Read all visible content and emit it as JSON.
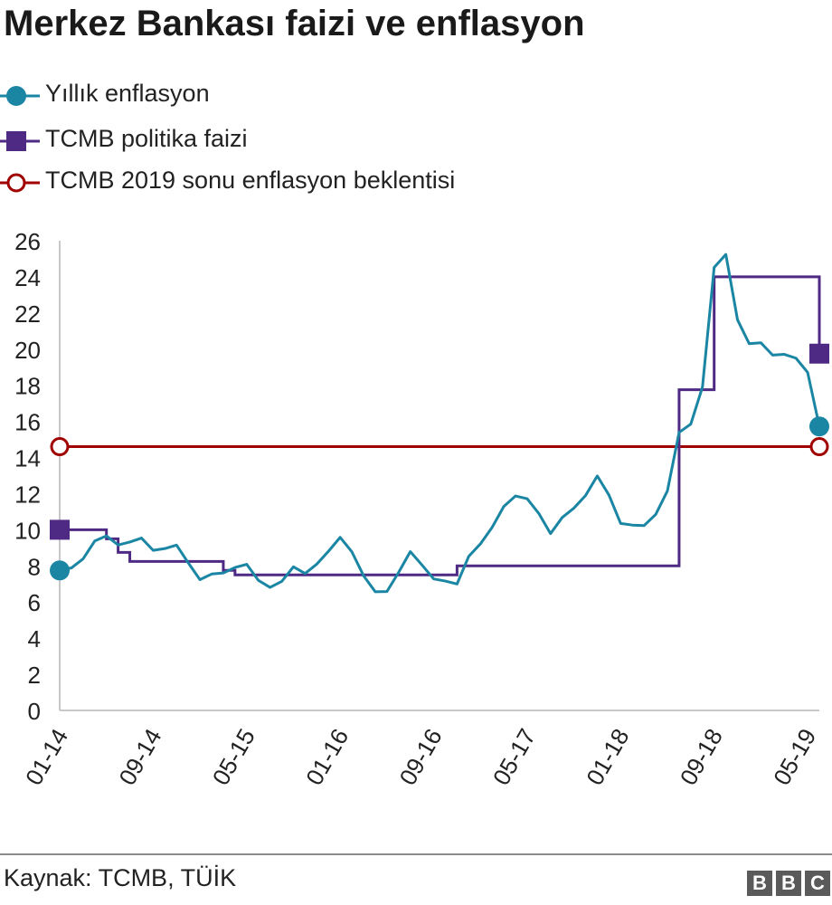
{
  "title": "Merkez Bankası faizi ve enflasyon",
  "source": "Kaynak: TCMB, TÜİK",
  "logo": [
    "B",
    "B",
    "C"
  ],
  "colors": {
    "inflation": "#1a86a4",
    "policy": "#4e2a84",
    "expectation": "#a00000",
    "axis": "#c8c8c8"
  },
  "chart_data": {
    "type": "line",
    "title": "Merkez Bankası faizi ve enflasyon",
    "xlabel": "",
    "ylabel": "",
    "ylim": [
      0,
      26
    ],
    "yticks": [
      "0",
      "2",
      "4",
      "6",
      "8",
      "10",
      "12",
      "14",
      "16",
      "18",
      "20",
      "22",
      "24",
      "26"
    ],
    "xticks": [
      "01-14",
      "09-14",
      "05-15",
      "01-16",
      "09-16",
      "05-17",
      "01-18",
      "09-18",
      "05-19"
    ],
    "x": [
      "01-14",
      "02-14",
      "03-14",
      "04-14",
      "05-14",
      "06-14",
      "07-14",
      "08-14",
      "09-14",
      "10-14",
      "11-14",
      "12-14",
      "01-15",
      "02-15",
      "03-15",
      "04-15",
      "05-15",
      "06-15",
      "07-15",
      "08-15",
      "09-15",
      "10-15",
      "11-15",
      "12-15",
      "01-16",
      "02-16",
      "03-16",
      "04-16",
      "05-16",
      "06-16",
      "07-16",
      "08-16",
      "09-16",
      "10-16",
      "11-16",
      "12-16",
      "01-17",
      "02-17",
      "03-17",
      "04-17",
      "05-17",
      "06-17",
      "07-17",
      "08-17",
      "09-17",
      "10-17",
      "11-17",
      "12-17",
      "01-18",
      "02-18",
      "03-18",
      "04-18",
      "05-18",
      "06-18",
      "07-18",
      "08-18",
      "09-18",
      "10-18",
      "11-18",
      "12-18",
      "01-19",
      "02-19",
      "03-19",
      "04-19",
      "05-19",
      "06-19"
    ],
    "grid": false,
    "legend_position": "top",
    "series": [
      {
        "name": "Yıllık enflasyon",
        "marker": "circle",
        "values": [
          7.75,
          7.89,
          8.39,
          9.38,
          9.66,
          9.16,
          9.32,
          9.54,
          8.86,
          8.96,
          9.15,
          8.17,
          7.24,
          7.55,
          7.61,
          7.91,
          8.09,
          7.2,
          6.81,
          7.14,
          7.95,
          7.58,
          8.1,
          8.81,
          9.58,
          8.78,
          7.46,
          6.57,
          6.58,
          7.64,
          8.79,
          8.05,
          7.28,
          7.16,
          7.0,
          8.53,
          9.22,
          10.13,
          11.29,
          11.87,
          11.72,
          10.9,
          9.79,
          10.68,
          11.2,
          11.9,
          12.98,
          11.92,
          10.35,
          10.26,
          10.23,
          10.85,
          12.15,
          15.39,
          15.85,
          17.9,
          24.52,
          25.24,
          21.62,
          20.3,
          20.35,
          19.67,
          19.71,
          19.5,
          18.71,
          15.72
        ]
      },
      {
        "name": "TCMB politika faizi",
        "marker": "square",
        "values": [
          10,
          10,
          10,
          10,
          9.5,
          8.75,
          8.25,
          8.25,
          8.25,
          8.25,
          8.25,
          8.25,
          8.25,
          8.25,
          7.75,
          7.5,
          7.5,
          7.5,
          7.5,
          7.5,
          7.5,
          7.5,
          7.5,
          7.5,
          7.5,
          7.5,
          7.5,
          7.5,
          7.5,
          7.5,
          7.5,
          7.5,
          7.5,
          7.5,
          8,
          8,
          8,
          8,
          8,
          8,
          8,
          8,
          8,
          8,
          8,
          8,
          8,
          8,
          8,
          8,
          8,
          8,
          8,
          17.75,
          17.75,
          17.75,
          24,
          24,
          24,
          24,
          24,
          24,
          24,
          24,
          24,
          19.75
        ]
      },
      {
        "name": "TCMB 2019 sonu enflasyon beklentisi",
        "marker": "open-circle",
        "values": [
          14.6,
          14.6,
          14.6,
          14.6,
          14.6,
          14.6,
          14.6,
          14.6,
          14.6,
          14.6,
          14.6,
          14.6,
          14.6,
          14.6,
          14.6,
          14.6,
          14.6,
          14.6,
          14.6,
          14.6,
          14.6,
          14.6,
          14.6,
          14.6,
          14.6,
          14.6,
          14.6,
          14.6,
          14.6,
          14.6,
          14.6,
          14.6,
          14.6,
          14.6,
          14.6,
          14.6,
          14.6,
          14.6,
          14.6,
          14.6,
          14.6,
          14.6,
          14.6,
          14.6,
          14.6,
          14.6,
          14.6,
          14.6,
          14.6,
          14.6,
          14.6,
          14.6,
          14.6,
          14.6,
          14.6,
          14.6,
          14.6,
          14.6,
          14.6,
          14.6,
          14.6,
          14.6,
          14.6,
          14.6,
          14.6,
          14.6
        ]
      }
    ]
  }
}
